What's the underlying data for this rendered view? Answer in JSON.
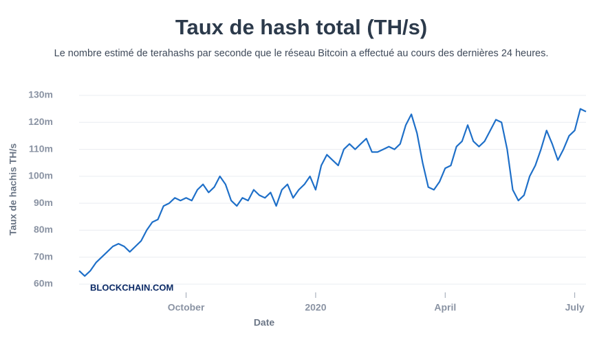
{
  "chart_data": {
    "type": "line",
    "title": "Taux de hash total (TH/s)",
    "subtitle": "Le nombre estimé de terahashs par seconde que le réseau Bitcoin a effectué au cours des dernières 24 heures.",
    "x_label": "Date",
    "y_label": "Taux de hachis TH/s",
    "watermark": "BLOCKCHAIN.COM",
    "grid": true,
    "categories": [
      null,
      null,
      null,
      null,
      null,
      null,
      null,
      null,
      null,
      null,
      null,
      null,
      null,
      null,
      null,
      null,
      null,
      null,
      null,
      "October",
      null,
      null,
      null,
      null,
      null,
      null,
      null,
      null,
      null,
      null,
      null,
      null,
      null,
      null,
      null,
      null,
      null,
      null,
      null,
      null,
      null,
      null,
      "2020",
      null,
      null,
      null,
      null,
      null,
      null,
      null,
      null,
      null,
      null,
      null,
      null,
      null,
      null,
      null,
      null,
      null,
      null,
      null,
      null,
      null,
      null,
      "April",
      null,
      null,
      null,
      null,
      null,
      null,
      null,
      null,
      null,
      null,
      null,
      null,
      null,
      null,
      null,
      null,
      null,
      null,
      null,
      null,
      null,
      null,
      "July",
      null,
      null
    ],
    "series": [
      {
        "color": "#1e6fc8",
        "values": [
          65000000,
          63000000,
          65000000,
          68000000,
          70000000,
          72000000,
          74000000,
          75000000,
          74000000,
          72000000,
          74000000,
          76000000,
          80000000,
          83000000,
          84000000,
          89000000,
          90000000,
          92000000,
          91000000,
          92000000,
          91000000,
          95000000,
          97000000,
          94000000,
          96000000,
          100000000,
          97000000,
          91000000,
          89000000,
          92000000,
          91000000,
          95000000,
          93000000,
          92000000,
          94000000,
          89000000,
          95000000,
          97000000,
          92000000,
          95000000,
          97000000,
          100000000,
          95000000,
          104000000,
          108000000,
          106000000,
          104000000,
          110000000,
          112000000,
          110000000,
          112000000,
          114000000,
          109000000,
          109000000,
          110000000,
          111000000,
          110000000,
          112000000,
          119000000,
          123000000,
          116000000,
          105000000,
          96000000,
          95000000,
          98000000,
          103000000,
          104000000,
          111000000,
          113000000,
          119000000,
          113000000,
          111000000,
          113000000,
          117000000,
          121000000,
          120000000,
          110000000,
          95000000,
          91000000,
          93000000,
          100000000,
          104000000,
          110000000,
          117000000,
          112000000,
          106000000,
          110000000,
          115000000,
          117000000,
          125000000,
          124000000
        ]
      }
    ],
    "ylim": [
      60000000,
      130000000
    ],
    "yticks": [
      {
        "value": 60000000,
        "label": "60m"
      },
      {
        "value": 70000000,
        "label": "70m"
      },
      {
        "value": 80000000,
        "label": "80m"
      },
      {
        "value": 90000000,
        "label": "90m"
      },
      {
        "value": 100000000,
        "label": "100m"
      },
      {
        "value": 110000000,
        "label": "110m"
      },
      {
        "value": 120000000,
        "label": "120m"
      },
      {
        "value": 130000000,
        "label": "130m"
      }
    ]
  }
}
